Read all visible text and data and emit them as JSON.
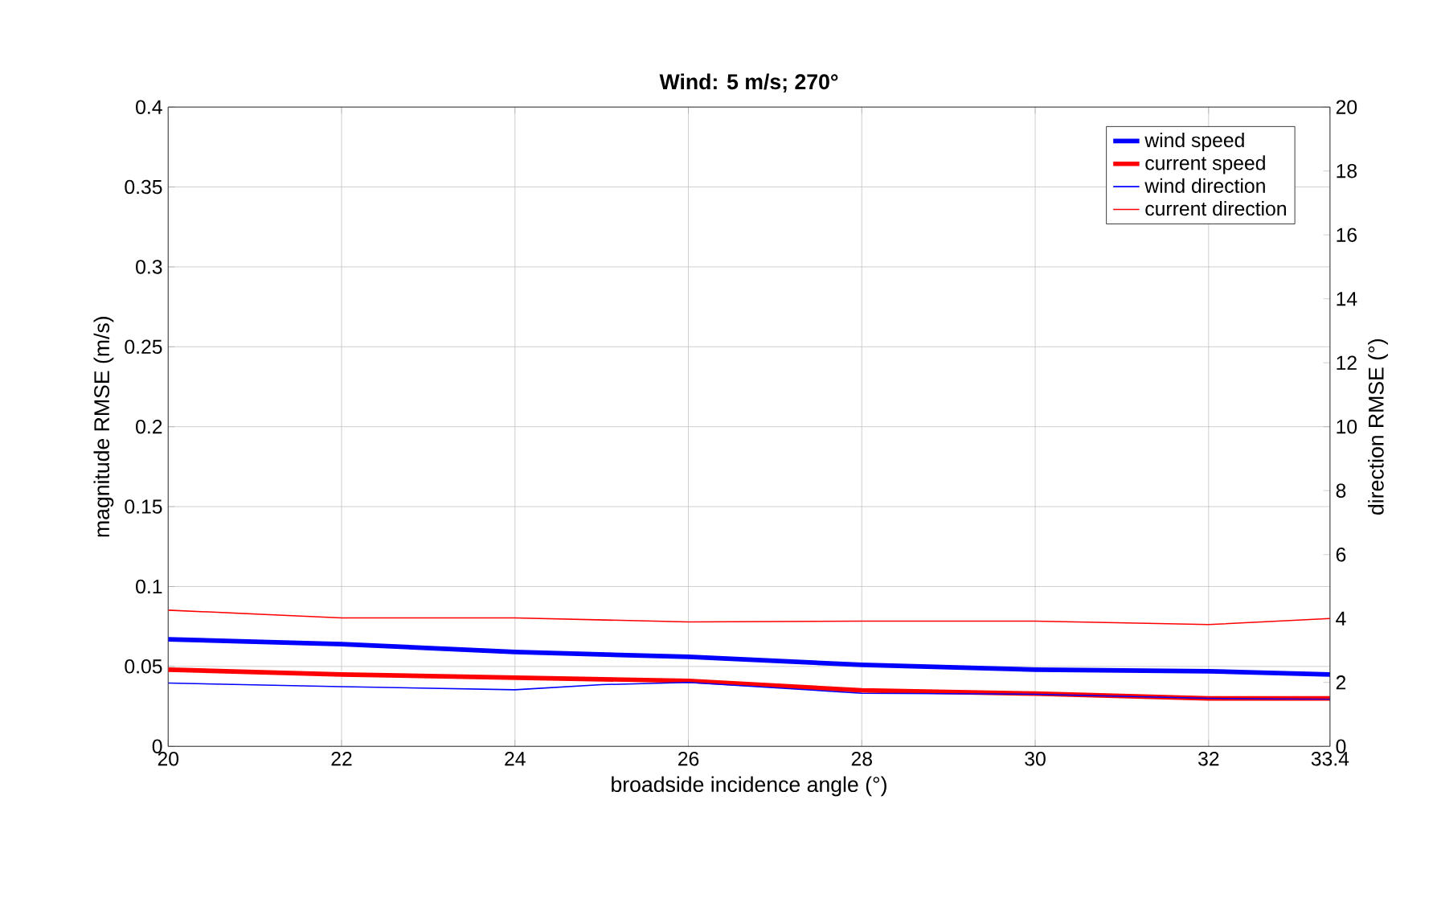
{
  "chart_data": {
    "type": "line",
    "title": "Wind: 5 m/s; 270°",
    "xlabel": "broadside incidence angle (°)",
    "ylabel": "magnitude RMSE (m/s)",
    "y2label": "direction RMSE (°)",
    "xlim": [
      20,
      33.4
    ],
    "xticks": [
      20,
      22,
      24,
      26,
      28,
      30,
      32,
      33.4
    ],
    "ylim": [
      0,
      0.4
    ],
    "yticks": [
      0,
      0.05,
      0.1,
      0.15,
      0.2,
      0.25,
      0.3,
      0.35,
      0.4
    ],
    "y2lim": [
      0,
      20
    ],
    "y2ticks": [
      0,
      2,
      4,
      6,
      8,
      10,
      12,
      14,
      16,
      18,
      20
    ],
    "grid": true,
    "legend": "top right",
    "series": [
      {
        "name": "wind speed",
        "color": "#0000ff",
        "x": [
          20,
          22,
          24,
          26,
          28,
          30,
          32,
          33.4
        ],
        "values": [
          0.067,
          0.064,
          0.059,
          0.056,
          0.051,
          0.048,
          0.047,
          0.045
        ]
      },
      {
        "name": "current speed",
        "color": "#ff0000",
        "x": [
          20,
          22,
          24,
          26,
          28,
          30,
          32,
          33.4
        ],
        "values": [
          0.048,
          0.045,
          0.043,
          0.041,
          0.035,
          0.033,
          0.03,
          0.03
        ]
      },
      {
        "name": "wind direction",
        "color": "#0000ff",
        "axis": "y2",
        "x": [
          20,
          22,
          24,
          25,
          26,
          28,
          30,
          32,
          33.4
        ],
        "values": [
          1.98,
          1.87,
          1.77,
          1.93,
          2.0,
          1.66,
          1.63,
          1.5,
          1.47
        ]
      },
      {
        "name": "current direction",
        "color": "#ff0000",
        "axis": "y2",
        "x": [
          20,
          22,
          24,
          26,
          28,
          30,
          32,
          33.4
        ],
        "values": [
          4.26,
          4.02,
          4.02,
          3.89,
          3.92,
          3.92,
          3.81,
          4.0
        ]
      }
    ]
  }
}
